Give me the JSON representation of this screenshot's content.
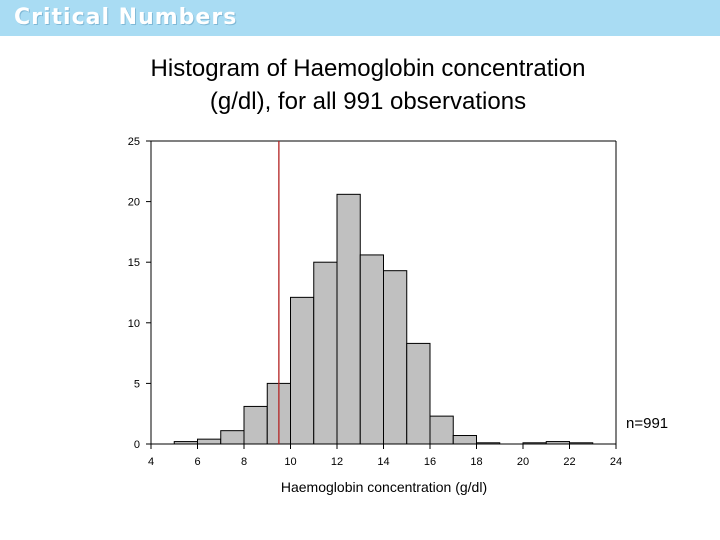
{
  "header": {
    "title": "Critical Numbers",
    "band_color": "#a9dcf3"
  },
  "slide": {
    "title_line1": "Histogram of Haemoglobin concentration",
    "title_line2": "(g/dl), for all 991 observations"
  },
  "chart_data": {
    "type": "bar",
    "title": "",
    "xlabel": "Haemoglobin concentration (g/dl)",
    "ylabel": "",
    "xlim": [
      4,
      24
    ],
    "ylim": [
      0,
      25
    ],
    "xticks": [
      4,
      6,
      8,
      10,
      12,
      14,
      16,
      18,
      20,
      22,
      24
    ],
    "yticks": [
      0,
      5,
      10,
      15,
      20,
      25
    ],
    "bin_width": 1,
    "bins": [
      {
        "x0": 5,
        "x1": 6,
        "value": 0.2
      },
      {
        "x0": 6,
        "x1": 7,
        "value": 0.4
      },
      {
        "x0": 7,
        "x1": 8,
        "value": 1.1
      },
      {
        "x0": 8,
        "x1": 9,
        "value": 3.1
      },
      {
        "x0": 9,
        "x1": 10,
        "value": 5.0
      },
      {
        "x0": 10,
        "x1": 11,
        "value": 12.1
      },
      {
        "x0": 11,
        "x1": 12,
        "value": 15.0
      },
      {
        "x0": 12,
        "x1": 13,
        "value": 20.6
      },
      {
        "x0": 13,
        "x1": 14,
        "value": 15.6
      },
      {
        "x0": 14,
        "x1": 15,
        "value": 14.3
      },
      {
        "x0": 15,
        "x1": 16,
        "value": 8.3
      },
      {
        "x0": 16,
        "x1": 17,
        "value": 2.3
      },
      {
        "x0": 17,
        "x1": 18,
        "value": 0.7
      },
      {
        "x0": 18,
        "x1": 19,
        "value": 0.1
      },
      {
        "x0": 20,
        "x1": 21,
        "value": 0.1
      },
      {
        "x0": 21,
        "x1": 22,
        "value": 0.2
      },
      {
        "x0": 22,
        "x1": 23,
        "value": 0.1
      }
    ],
    "reference_line": {
      "x": 9.5,
      "color": "#b22222"
    },
    "annotation": "n=991",
    "bar_fill": "#c0c0c0",
    "bar_stroke": "#000000",
    "grid": false,
    "legend": "none"
  }
}
